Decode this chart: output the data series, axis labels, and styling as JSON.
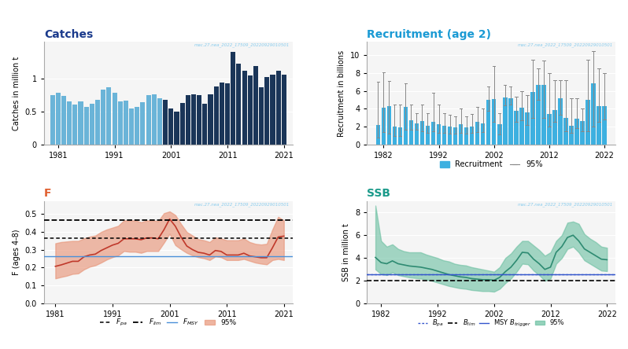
{
  "catches_years": [
    1980,
    1981,
    1982,
    1983,
    1984,
    1985,
    1986,
    1987,
    1988,
    1989,
    1990,
    1991,
    1992,
    1993,
    1994,
    1995,
    1996,
    1997,
    1998,
    1999,
    2000,
    2001,
    2002,
    2003,
    2004,
    2005,
    2006,
    2007,
    2008,
    2009,
    2010,
    2011,
    2012,
    2013,
    2014,
    2015,
    2016,
    2017,
    2018,
    2019,
    2020,
    2021
  ],
  "catches_values": [
    0.75,
    0.78,
    0.73,
    0.65,
    0.6,
    0.65,
    0.57,
    0.62,
    0.67,
    0.83,
    0.86,
    0.78,
    0.65,
    0.66,
    0.55,
    0.57,
    0.64,
    0.75,
    0.76,
    0.7,
    0.67,
    0.54,
    0.5,
    0.63,
    0.75,
    0.76,
    0.75,
    0.62,
    0.76,
    0.88,
    0.94,
    0.92,
    1.4,
    1.22,
    1.12,
    1.04,
    1.18,
    0.86,
    1.02,
    1.05,
    1.12,
    1.06
  ],
  "catches_color_light": "#6ab4d8",
  "catches_color_dark": "#1a3558",
  "catches_cutoff_year": 2000,
  "recruit_years": [
    1981,
    1982,
    1983,
    1984,
    1985,
    1986,
    1987,
    1988,
    1989,
    1990,
    1991,
    1992,
    1993,
    1994,
    1995,
    1996,
    1997,
    1998,
    1999,
    2000,
    2001,
    2002,
    2003,
    2004,
    2005,
    2006,
    2007,
    2008,
    2009,
    2010,
    2011,
    2012,
    2013,
    2014,
    2015,
    2016,
    2017,
    2018,
    2019,
    2020,
    2021,
    2022
  ],
  "recruit_values": [
    2.2,
    4.1,
    4.3,
    2.0,
    1.9,
    4.2,
    2.7,
    2.4,
    2.6,
    2.1,
    2.5,
    2.3,
    2.1,
    2.0,
    1.9,
    2.3,
    1.9,
    2.0,
    2.5,
    2.4,
    5.0,
    5.1,
    2.3,
    5.3,
    5.2,
    3.8,
    4.1,
    3.6,
    5.9,
    6.7,
    6.7,
    3.4,
    3.9,
    5.2,
    3.0,
    2.1,
    2.9,
    2.6,
    5.0,
    6.9,
    4.3,
    4.3
  ],
  "recruit_lo95": [
    0.8,
    1.4,
    1.2,
    1.0,
    1.0,
    1.7,
    1.7,
    1.7,
    1.5,
    1.3,
    1.5,
    1.3,
    1.3,
    1.2,
    1.2,
    1.3,
    1.2,
    1.3,
    1.4,
    1.4,
    3.8,
    2.5,
    1.1,
    4.4,
    4.5,
    2.5,
    2.7,
    2.2,
    3.0,
    5.0,
    3.0,
    2.0,
    2.5,
    3.3,
    1.5,
    1.3,
    1.8,
    1.5,
    1.5,
    2.0,
    2.5,
    2.8
  ],
  "recruit_hi95": [
    7.0,
    8.1,
    7.1,
    4.5,
    4.5,
    6.9,
    4.5,
    3.5,
    4.5,
    3.5,
    5.8,
    4.5,
    3.5,
    3.3,
    3.2,
    4.0,
    3.2,
    3.4,
    4.2,
    4.0,
    6.5,
    8.8,
    3.5,
    6.7,
    6.5,
    5.4,
    6.0,
    5.5,
    9.5,
    8.5,
    9.4,
    8.0,
    7.2,
    7.2,
    7.2,
    5.2,
    5.2,
    4.0,
    9.5,
    10.5,
    8.5,
    8.0
  ],
  "recruit_color": "#3db0e0",
  "f_years": [
    1981,
    1982,
    1983,
    1984,
    1985,
    1986,
    1987,
    1988,
    1989,
    1990,
    1991,
    1992,
    1993,
    1994,
    1995,
    1996,
    1997,
    1998,
    1999,
    2000,
    2001,
    2002,
    2003,
    2004,
    2005,
    2006,
    2007,
    2008,
    2009,
    2010,
    2011,
    2012,
    2013,
    2014,
    2015,
    2016,
    2017,
    2018,
    2019,
    2020,
    2021
  ],
  "f_values": [
    0.207,
    0.215,
    0.225,
    0.235,
    0.235,
    0.26,
    0.27,
    0.275,
    0.295,
    0.31,
    0.325,
    0.335,
    0.36,
    0.36,
    0.36,
    0.355,
    0.365,
    0.365,
    0.36,
    0.41,
    0.47,
    0.43,
    0.37,
    0.32,
    0.3,
    0.285,
    0.28,
    0.27,
    0.295,
    0.29,
    0.27,
    0.27,
    0.27,
    0.28,
    0.265,
    0.26,
    0.255,
    0.255,
    0.31,
    0.37,
    0.375
  ],
  "f_lo95": [
    0.14,
    0.148,
    0.155,
    0.165,
    0.168,
    0.19,
    0.205,
    0.213,
    0.228,
    0.245,
    0.258,
    0.268,
    0.292,
    0.288,
    0.288,
    0.282,
    0.292,
    0.292,
    0.292,
    0.338,
    0.388,
    0.325,
    0.302,
    0.282,
    0.268,
    0.258,
    0.252,
    0.242,
    0.262,
    0.258,
    0.242,
    0.242,
    0.242,
    0.248,
    0.238,
    0.228,
    0.222,
    0.218,
    0.242,
    0.248,
    0.242
  ],
  "f_hi95": [
    0.335,
    0.342,
    0.345,
    0.348,
    0.348,
    0.362,
    0.372,
    0.378,
    0.398,
    0.412,
    0.422,
    0.432,
    0.462,
    0.462,
    0.462,
    0.452,
    0.462,
    0.462,
    0.458,
    0.502,
    0.512,
    0.492,
    0.442,
    0.398,
    0.378,
    0.358,
    0.352,
    0.342,
    0.368,
    0.362,
    0.352,
    0.352,
    0.352,
    0.362,
    0.342,
    0.332,
    0.328,
    0.332,
    0.412,
    0.482,
    0.462
  ],
  "f_pa": 0.462,
  "f_msy_upper": 0.365,
  "f_msy": 0.265,
  "f_line_color": "#c0392b",
  "f_fill_color": "#e8967a",
  "f_msy_line_color": "#4a90d9",
  "ssb_years": [
    1981,
    1982,
    1983,
    1984,
    1985,
    1986,
    1987,
    1988,
    1989,
    1990,
    1991,
    1992,
    1993,
    1994,
    1995,
    1996,
    1997,
    1998,
    1999,
    2000,
    2001,
    2002,
    2003,
    2004,
    2005,
    2006,
    2007,
    2008,
    2009,
    2010,
    2011,
    2012,
    2013,
    2014,
    2015,
    2016,
    2017,
    2018,
    2019,
    2020,
    2021,
    2022
  ],
  "ssb_values": [
    4.05,
    3.6,
    3.5,
    3.75,
    3.5,
    3.4,
    3.3,
    3.25,
    3.2,
    3.1,
    3.0,
    2.85,
    2.7,
    2.55,
    2.45,
    2.35,
    2.3,
    2.2,
    2.15,
    2.1,
    2.1,
    2.05,
    2.3,
    2.8,
    3.2,
    3.8,
    4.5,
    4.45,
    3.9,
    3.5,
    3.0,
    3.2,
    4.5,
    5.0,
    5.8,
    6.0,
    5.5,
    4.8,
    4.5,
    4.2,
    3.9,
    3.85
  ],
  "ssb_lo95": [
    3.0,
    2.6,
    2.5,
    2.75,
    2.5,
    2.4,
    2.3,
    2.25,
    2.2,
    2.1,
    2.0,
    1.85,
    1.7,
    1.55,
    1.45,
    1.35,
    1.3,
    1.2,
    1.15,
    1.1,
    1.1,
    1.05,
    1.3,
    1.8,
    2.2,
    2.8,
    3.5,
    3.45,
    2.9,
    2.5,
    2.0,
    2.2,
    3.5,
    4.0,
    4.8,
    5.0,
    4.5,
    3.8,
    3.5,
    3.2,
    2.9,
    2.85
  ],
  "ssb_hi95": [
    8.6,
    5.5,
    5.0,
    5.2,
    4.8,
    4.6,
    4.5,
    4.5,
    4.5,
    4.3,
    4.15,
    4.0,
    3.8,
    3.7,
    3.5,
    3.4,
    3.35,
    3.2,
    3.1,
    3.0,
    2.9,
    2.8,
    3.2,
    4.0,
    4.4,
    5.0,
    5.5,
    5.5,
    5.1,
    4.7,
    4.2,
    4.5,
    5.5,
    6.0,
    7.1,
    7.2,
    7.0,
    6.1,
    5.7,
    5.4,
    5.0,
    4.9
  ],
  "ssb_bpa": 2.6,
  "ssb_blim": 2.05,
  "ssb_msybtrigger": 2.6,
  "ssb_line_color": "#2e8b72",
  "ssb_fill_color": "#6abfa0",
  "watermark": "mac.27.nea_2022_17509_20220929010501",
  "bg_color": "#f5f5f5"
}
